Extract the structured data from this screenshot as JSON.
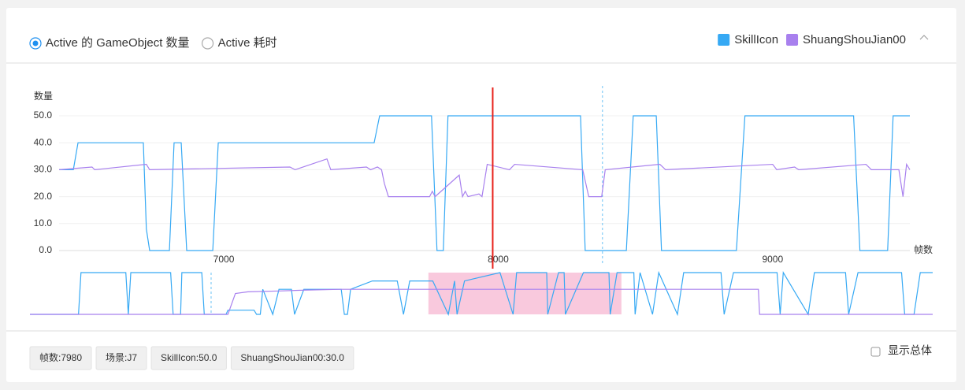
{
  "header": {
    "options": [
      "Active 的 GameObject 数量",
      "Active 耗时"
    ],
    "selected": 0
  },
  "chart_data": [
    {
      "type": "line",
      "ylabel": "数量",
      "xlabel": "帧数",
      "xlim": [
        6400,
        9500
      ],
      "xticks": [
        7000,
        8000,
        9000
      ],
      "ylim": [
        0,
        50
      ],
      "yticks": [
        {
          "value": 0,
          "label": "0.0"
        },
        {
          "value": 10,
          "label": "10.0"
        },
        {
          "value": 20,
          "label": "20.0"
        },
        {
          "value": 30,
          "label": "30.0"
        },
        {
          "value": 40,
          "label": "40.0"
        },
        {
          "value": 50,
          "label": "50.0"
        }
      ],
      "grid": true,
      "cursor": 7980,
      "marker": 8380,
      "series": [
        {
          "name": "SkillIcon",
          "color": "#36a9f4",
          "x": [
            6400,
            6452,
            6469,
            6707,
            6718,
            6730,
            6802,
            6819,
            6845,
            6865,
            6960,
            6980,
            7548,
            7568,
            7757,
            7777,
            7800,
            7817,
            8300,
            8317,
            8467,
            8492,
            8576,
            8595,
            8868,
            8899,
            9295,
            9318,
            9419,
            9439,
            9500
          ],
          "values": [
            30,
            30,
            40,
            40,
            8,
            0,
            0,
            40,
            40,
            0,
            0,
            40,
            40,
            50,
            50,
            0,
            0,
            50,
            50,
            0,
            0,
            50,
            50,
            0,
            0,
            50,
            50,
            0,
            0,
            50,
            50
          ]
        },
        {
          "name": "ShuangShouJian00",
          "color": "#a880ee",
          "x": [
            6400,
            6520,
            6530,
            6718,
            6730,
            7241,
            7260,
            7376,
            7390,
            7520,
            7535,
            7560,
            7575,
            7585,
            7600,
            7750,
            7760,
            7770,
            7858,
            7870,
            7880,
            7890,
            7930,
            7941,
            7960,
            8041,
            8060,
            8308,
            8330,
            8377,
            8390,
            8589,
            8610,
            9000,
            9015,
            9080,
            9095,
            9340,
            9360,
            9460,
            9475,
            9488,
            9500
          ],
          "values": [
            30,
            31,
            30,
            32,
            30,
            31,
            30,
            34,
            30,
            31,
            30,
            31,
            30,
            25,
            20,
            20,
            22,
            20,
            28,
            20,
            22,
            20,
            21,
            20,
            32,
            30,
            32,
            30,
            20,
            20,
            30,
            32,
            30,
            32,
            30,
            31,
            30,
            32,
            30,
            30,
            20,
            32,
            30
          ]
        }
      ]
    },
    {
      "type": "line",
      "xlim": [
        0,
        14500
      ],
      "ylim": [
        0,
        50
      ],
      "highlight": [
        6400,
        9500
      ],
      "marker": 2910,
      "series": [
        {
          "name": "SkillIcon",
          "color": "#36a9f4",
          "x": [
            0,
            780,
            820,
            1540,
            1580,
            1620,
            2260,
            2300,
            2420,
            2440,
            2760,
            2800,
            3150,
            3180,
            3600,
            3640,
            3700,
            3740,
            3900,
            4000,
            4200,
            4250,
            4400,
            5000,
            5050,
            5100,
            5150,
            5500,
            5900,
            6000,
            6100,
            6470,
            6720,
            6820,
            6860,
            6980,
            7550,
            7760,
            7817,
            8300,
            8317,
            8490,
            8580,
            8600,
            8890,
            9300,
            9320,
            9430,
            9700,
            9720,
            9800,
            10000,
            10100,
            10400,
            10500,
            11100,
            11150,
            11300,
            12000,
            12050,
            12100,
            12500,
            12600,
            13100,
            13150,
            13300,
            14000,
            14050,
            14200,
            14300,
            14500
          ],
          "values": [
            0,
            0,
            50,
            50,
            0,
            50,
            50,
            0,
            0,
            50,
            50,
            0,
            0,
            5,
            5,
            0,
            0,
            30,
            0,
            30,
            30,
            0,
            30,
            30,
            0,
            0,
            30,
            40,
            40,
            0,
            40,
            40,
            0,
            40,
            0,
            40,
            50,
            0,
            50,
            50,
            0,
            50,
            50,
            0,
            50,
            50,
            0,
            50,
            50,
            0,
            50,
            0,
            50,
            0,
            50,
            50,
            0,
            50,
            50,
            0,
            50,
            0,
            50,
            50,
            0,
            50,
            50,
            0,
            0,
            50,
            50
          ]
        },
        {
          "name": "ShuangShouJian00",
          "color": "#a880ee",
          "x": [
            0,
            3180,
            3300,
            3500,
            4000,
            4400,
            5000,
            11700,
            11720,
            14500
          ],
          "values": [
            0,
            0,
            25,
            27,
            28,
            29,
            30,
            30,
            0,
            0
          ]
        }
      ]
    }
  ],
  "footer": {
    "chips": [
      "帧数:7980",
      "场景:J7",
      "SkillIcon:50.0",
      "ShuangShouJian00:30.0"
    ],
    "checkbox": "显示总体"
  }
}
